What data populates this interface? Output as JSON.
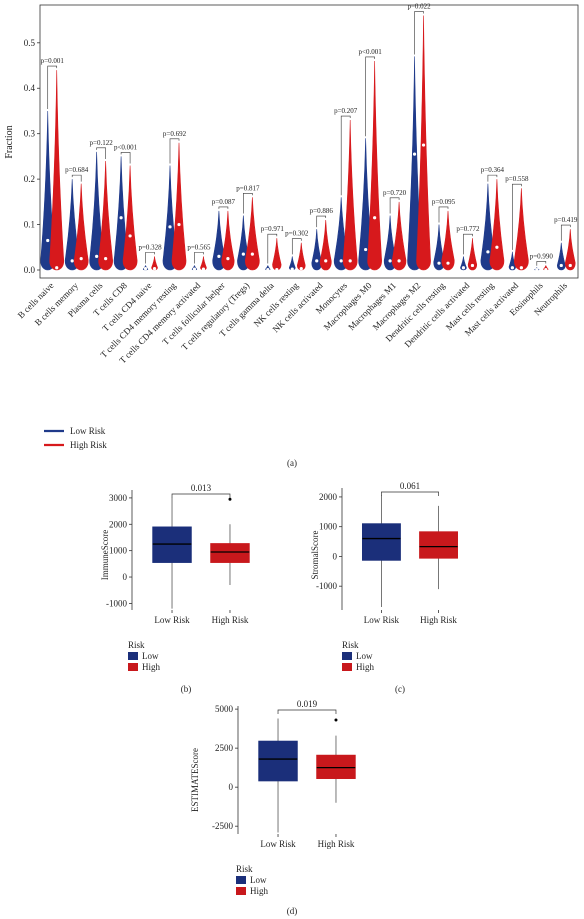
{
  "colors": {
    "low": "#1f3a8a",
    "high": "#d7191c",
    "box_low": "#1b2f7a",
    "box_high": "#c8181c",
    "axis": "#333333"
  },
  "panel_labels": {
    "a": "(a)",
    "b": "(b)",
    "c": "(c)",
    "d": "(d)"
  },
  "legend_a": {
    "low": "Low Risk",
    "high": "High Risk"
  },
  "legend_box": {
    "title": "Risk",
    "low": "Low",
    "high": "High"
  },
  "chart_data": [
    {
      "type": "violin",
      "ylabel": "Fraction",
      "ylim": [
        0,
        0.57
      ],
      "yticks": [
        0.0,
        0.1,
        0.2,
        0.3,
        0.4,
        0.5
      ],
      "series_names": [
        "Low Risk",
        "High Risk"
      ],
      "categories": [
        "B cells naive",
        "B cells memory",
        "Plasma cells",
        "T cells CD8",
        "T cells CD4 naive",
        "T cells CD4 memory resting",
        "T cells CD4 memory activated",
        "T cells follicular helper",
        "T cells regulatory (Tregs)",
        "T cells gamma delta",
        "NK cells resting",
        "NK cells activated",
        "Monocytes",
        "Macrophages M0",
        "Macrophages M1",
        "Macrophages M2",
        "Dendritic cells resting",
        "Dendritic cells activated",
        "Mast cells resting",
        "Mast cells activated",
        "Eosinophils",
        "Neutrophils"
      ],
      "pvalues": [
        "p=0.001",
        "p=0.684",
        "p=0.122",
        "p<0.001",
        "p=0.328",
        "p=0.692",
        "p=0.565",
        "p=0.087",
        "p=0.817",
        "p=0.971",
        "p=0.302",
        "p=0.886",
        "p=0.207",
        "p<0.001",
        "p=0.720",
        "p=0.022",
        "p=0.095",
        "p=0.772",
        "p=0.364",
        "p=0.558",
        "p=0.990",
        "p=0.419"
      ],
      "low_max": [
        0.35,
        0.2,
        0.26,
        0.25,
        0.01,
        0.23,
        0.01,
        0.13,
        0.12,
        0.01,
        0.03,
        0.09,
        0.16,
        0.29,
        0.12,
        0.47,
        0.1,
        0.03,
        0.19,
        0.04,
        0.005,
        0.06
      ],
      "high_max": [
        0.44,
        0.19,
        0.24,
        0.23,
        0.03,
        0.28,
        0.03,
        0.13,
        0.16,
        0.07,
        0.06,
        0.11,
        0.33,
        0.46,
        0.15,
        0.56,
        0.13,
        0.07,
        0.2,
        0.18,
        0.01,
        0.09
      ],
      "low_median": [
        0.065,
        0.02,
        0.03,
        0.115,
        0.003,
        0.095,
        0.002,
        0.03,
        0.035,
        0.001,
        0.002,
        0.02,
        0.02,
        0.045,
        0.02,
        0.255,
        0.015,
        0.005,
        0.04,
        0.005,
        0.001,
        0.01
      ],
      "high_median": [
        0.005,
        0.025,
        0.025,
        0.075,
        0.003,
        0.1,
        0.002,
        0.025,
        0.035,
        0.001,
        0.003,
        0.02,
        0.02,
        0.115,
        0.02,
        0.275,
        0.015,
        0.01,
        0.05,
        0.005,
        0.001,
        0.01
      ]
    },
    {
      "type": "box",
      "ylabel": "ImmuneScore",
      "ylim": [
        -1250,
        3300
      ],
      "yticks": [
        -1000,
        0,
        1000,
        2000,
        3000
      ],
      "categories": [
        "Low Risk",
        "High Risk"
      ],
      "pvalue": "0.013",
      "boxes": [
        {
          "min": -1200,
          "q1": 550,
          "median": 1250,
          "q3": 1900,
          "max": 3000
        },
        {
          "min": -300,
          "q1": 550,
          "median": 950,
          "q3": 1270,
          "max": 2000,
          "outliers": [
            2950
          ]
        }
      ]
    },
    {
      "type": "box",
      "ylabel": "StromalScore",
      "ylim": [
        -1800,
        2300
      ],
      "yticks": [
        -1000,
        0,
        1000,
        2000
      ],
      "categories": [
        "Low Risk",
        "High Risk"
      ],
      "pvalue": "0.061",
      "boxes": [
        {
          "min": -1700,
          "q1": -130,
          "median": 600,
          "q3": 1100,
          "max": 2050
        },
        {
          "min": -1100,
          "q1": -60,
          "median": 330,
          "q3": 830,
          "max": 1700
        }
      ]
    },
    {
      "type": "box",
      "ylabel": "ESTIMATEScore",
      "ylim": [
        -3000,
        5200
      ],
      "yticks": [
        -2500,
        0,
        2500,
        5000
      ],
      "categories": [
        "Low Risk",
        "High Risk"
      ],
      "pvalue": "0.019",
      "boxes": [
        {
          "min": -2900,
          "q1": 400,
          "median": 1800,
          "q3": 2950,
          "max": 4400
        },
        {
          "min": -1000,
          "q1": 550,
          "median": 1250,
          "q3": 2050,
          "max": 3300,
          "outliers": [
            4300
          ]
        }
      ]
    }
  ]
}
